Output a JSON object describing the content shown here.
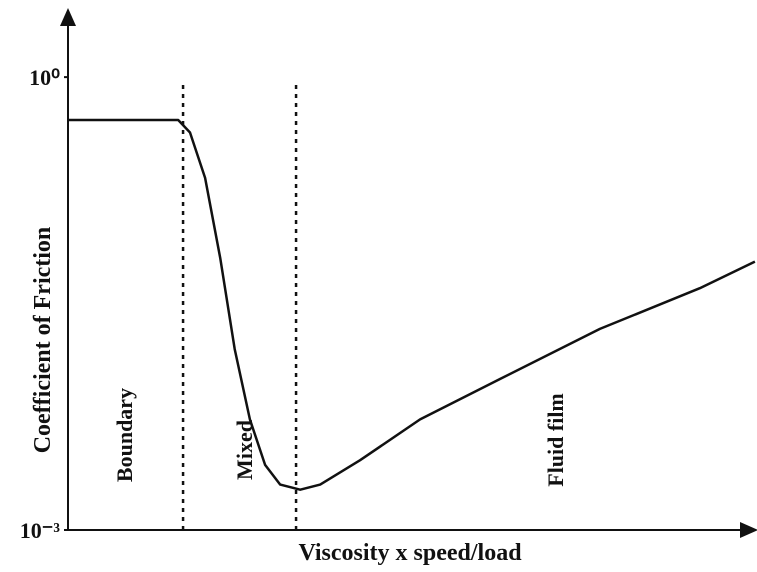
{
  "chart_data": {
    "type": "line",
    "xlabel": "Viscosity x speed/load",
    "ylabel": "Coefficient of Friction",
    "log_y": true,
    "xlim": [
      0,
      100
    ],
    "ylim": [
      0.001,
      2.7
    ],
    "yticks": [
      {
        "value": 1,
        "label": "10⁰"
      },
      {
        "value": 0.001,
        "label": "10⁻³"
      }
    ],
    "x": [
      0,
      16,
      17.7,
      19.9,
      22.1,
      24.2,
      26.4,
      28.6,
      30.8,
      33.7,
      36.6,
      42.4,
      51.1,
      62.7,
      77.2,
      91.7,
      99.7
    ],
    "series": [
      {
        "color": "#111111",
        "values": [
          0.52,
          0.52,
          0.43,
          0.215,
          0.063,
          0.0158,
          0.0054,
          0.0027,
          0.002,
          0.00185,
          0.002,
          0.0029,
          0.0054,
          0.01,
          0.0215,
          0.04,
          0.06
        ]
      }
    ],
    "region_boundaries": [
      16.7,
      33.1
    ],
    "regions": [
      "Boundary",
      "Mixed",
      "Fluid film"
    ]
  }
}
